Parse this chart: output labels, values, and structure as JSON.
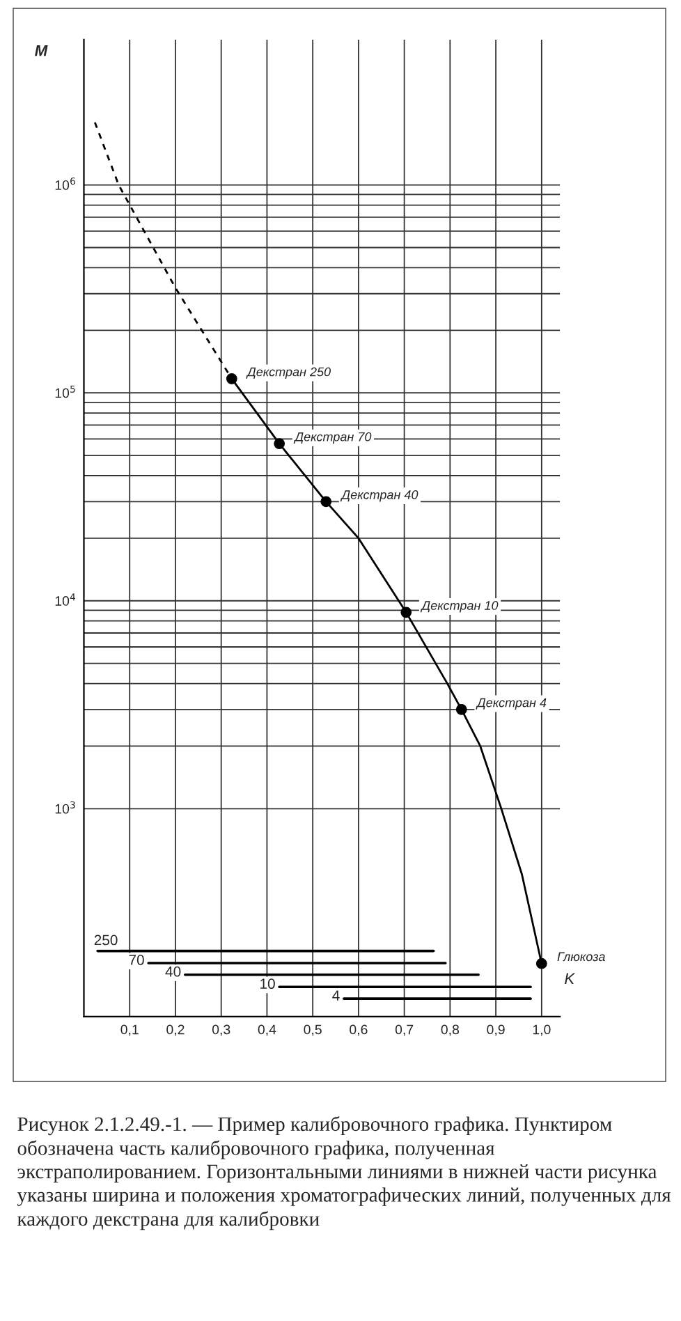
{
  "chart_data": {
    "type": "line",
    "xlabel": "K",
    "ylabel": "M",
    "xlim": [
      0,
      1.04
    ],
    "ylim": [
      100,
      5000000
    ],
    "log": "y",
    "grid": true,
    "xticks": [
      {
        "value": 0.1,
        "label": "0,1"
      },
      {
        "value": 0.2,
        "label": "0,2"
      },
      {
        "value": 0.3,
        "label": "0,3"
      },
      {
        "value": 0.4,
        "label": "0,4"
      },
      {
        "value": 0.5,
        "label": "0,5"
      },
      {
        "value": 0.6,
        "label": "0,6"
      },
      {
        "value": 0.7,
        "label": "0,7"
      },
      {
        "value": 0.8,
        "label": "0,8"
      },
      {
        "value": 0.9,
        "label": "0,9"
      },
      {
        "value": 1.0,
        "label": "1,0"
      }
    ],
    "yticks": [
      {
        "value": 1000,
        "label": "10$^{3}$"
      },
      {
        "value": 2000,
        "label": null
      },
      {
        "value": 3000,
        "label": null
      },
      {
        "value": 4000,
        "label": null
      },
      {
        "value": 5000,
        "label": null
      },
      {
        "value": 6000,
        "label": null
      },
      {
        "value": 7000,
        "label": null
      },
      {
        "value": 8000,
        "label": null
      },
      {
        "value": 9000,
        "label": null
      },
      {
        "value": 10000,
        "label": "10$^{4}$"
      },
      {
        "value": 20000,
        "label": null
      },
      {
        "value": 30000,
        "label": null
      },
      {
        "value": 40000,
        "label": null
      },
      {
        "value": 50000,
        "label": null
      },
      {
        "value": 60000,
        "label": null
      },
      {
        "value": 70000,
        "label": null
      },
      {
        "value": 80000,
        "label": null
      },
      {
        "value": 90000,
        "label": null
      },
      {
        "value": 100000,
        "label": "10$^{5}$"
      },
      {
        "value": 200000,
        "label": null
      },
      {
        "value": 300000,
        "label": null
      },
      {
        "value": 400000,
        "label": null
      },
      {
        "value": 500000,
        "label": null
      },
      {
        "value": 600000,
        "label": null
      },
      {
        "value": 700000,
        "label": null
      },
      {
        "value": 800000,
        "label": null
      },
      {
        "value": 900000,
        "label": null
      },
      {
        "value": 1000000,
        "label": "10$^{6}$"
      }
    ],
    "series": [
      {
        "line_style": "dashed",
        "color": "#000000",
        "x": [
          0.024,
          0.076,
          0.2,
          0.323
        ],
        "values": [
          2000000,
          1000000,
          320000,
          117000
        ]
      },
      {
        "line_style": "solid",
        "color": "#000000",
        "x": [
          0.323,
          0.427,
          0.529,
          0.6,
          0.704,
          0.794,
          0.825,
          0.866,
          0.912,
          0.957,
          1.0
        ],
        "values": [
          117000,
          57000,
          30000,
          20000,
          8800,
          4000,
          3000,
          2000,
          1000,
          483,
          180
        ]
      },
      {
        "type": "scatter",
        "marker": "circle",
        "color": "#000000",
        "x": [
          0.323,
          0.427,
          0.529,
          0.704,
          0.825,
          1.0
        ],
        "values": [
          117000,
          57000,
          30000,
          8800,
          3000,
          180
        ]
      },
      {
        "name": "250",
        "color": "#000000",
        "x": [
          0.03,
          0.764
        ],
        "values": [
          207,
          207
        ]
      },
      {
        "name": "70",
        "color": "#000000",
        "x": [
          0.141,
          0.79
        ],
        "values": [
          181,
          181
        ]
      },
      {
        "name": "40",
        "color": "#000000",
        "x": [
          0.221,
          0.862
        ],
        "values": [
          159,
          159
        ]
      },
      {
        "name": "10",
        "color": "#000000",
        "x": [
          0.427,
          0.976
        ],
        "values": [
          139,
          139
        ]
      },
      {
        "name": "4",
        "color": "#000000",
        "x": [
          0.568,
          0.976
        ],
        "values": [
          122,
          122
        ]
      }
    ],
    "annotations": [
      {
        "text": "Декстран 250",
        "x": 0.323,
        "y": 117000
      },
      {
        "text": "Декстран 70",
        "x": 0.427,
        "y": 57000
      },
      {
        "text": "Декстран 40",
        "x": 0.529,
        "y": 30000
      },
      {
        "text": "Декстран 10",
        "x": 0.704,
        "y": 8800
      },
      {
        "text": "Декстран 4",
        "x": 0.825,
        "y": 3000
      },
      {
        "text": "Глюкоза",
        "x": 1.0,
        "y": 180
      },
      "Рисунок 2.1.2.49.-1. — Пример калибровочного графика. Пунктиром обозначена часть калибровочного графика, полученная экстраполированием. Горизонтальными линиями в нижней части рисунка указаны ширина и положения хроматографических линий, полученных для каждого декстрана для калибровки"
    ]
  }
}
